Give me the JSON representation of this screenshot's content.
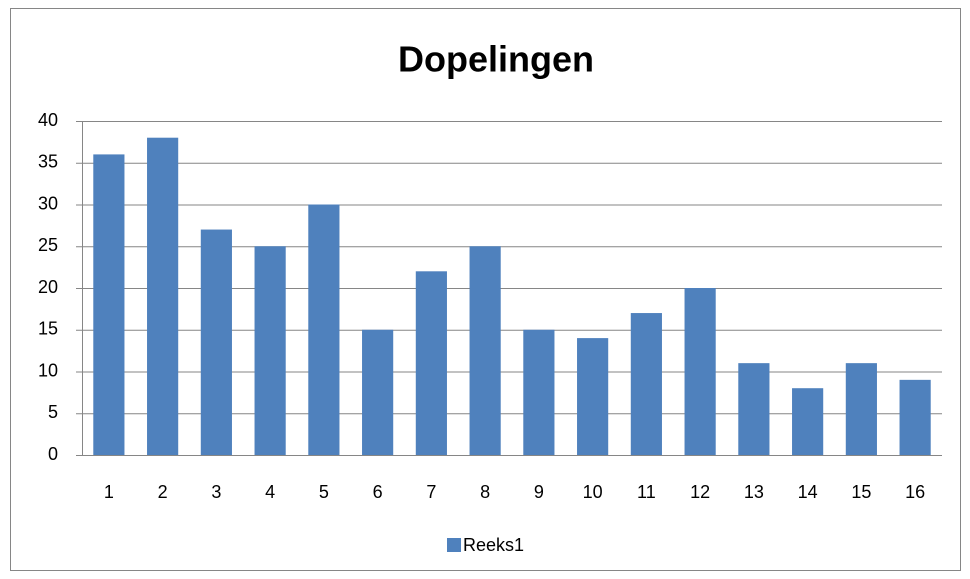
{
  "chart_data": {
    "type": "bar",
    "title": "Dopelingen",
    "categories": [
      "1",
      "2",
      "3",
      "4",
      "5",
      "6",
      "7",
      "8",
      "9",
      "10",
      "11",
      "12",
      "13",
      "14",
      "15",
      "16"
    ],
    "series": [
      {
        "name": "Reeks1",
        "color": "#4f81bd",
        "values": [
          36,
          38,
          27,
          25,
          30,
          15,
          22,
          25,
          15,
          14,
          17,
          20,
          11,
          8,
          11,
          9
        ]
      }
    ],
    "ylim": [
      0,
      40
    ],
    "yticks": [
      0,
      5,
      10,
      15,
      20,
      25,
      30,
      35,
      40
    ],
    "grid": true,
    "legend": "bottom"
  }
}
